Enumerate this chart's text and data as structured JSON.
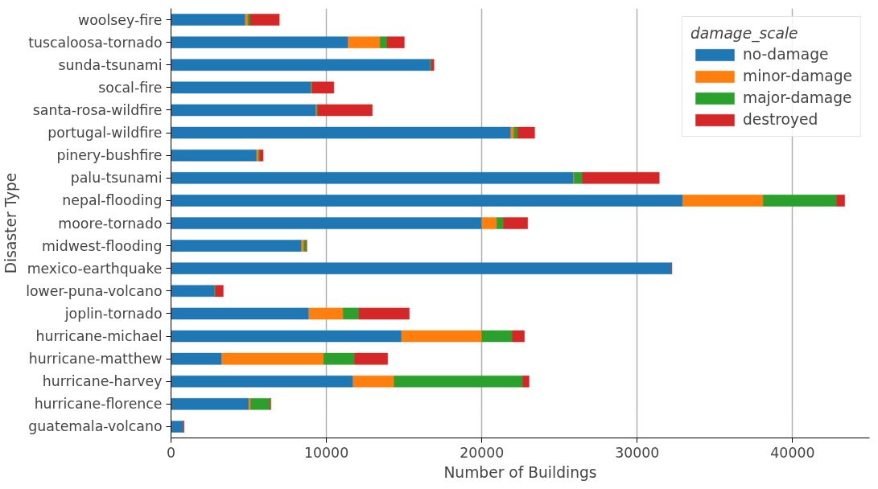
{
  "chart_data": {
    "type": "bar",
    "orientation": "horizontal",
    "stacked": true,
    "xlabel": "Number of Buildings",
    "ylabel": "Disaster Type",
    "legend_title": "damage_scale",
    "legend": "top right",
    "grid": "x",
    "categories": [
      "woolsey-fire",
      "tuscaloosa-tornado",
      "sunda-tsunami",
      "socal-fire",
      "santa-rosa-wildfire",
      "portugal-wildfire",
      "pinery-bushfire",
      "palu-tsunami",
      "nepal-flooding",
      "moore-tornado",
      "midwest-flooding",
      "mexico-earthquake",
      "lower-puna-volcano",
      "joplin-tornado",
      "hurricane-michael",
      "hurricane-matthew",
      "hurricane-harvey",
      "hurricane-florence",
      "guatemala-volcano"
    ],
    "xlim": [
      0,
      44950
    ],
    "xticks": [
      0,
      10000,
      20000,
      30000,
      40000
    ],
    "series": [
      {
        "name": "no-damage",
        "color": "#1f77b4",
        "values": [
          4780,
          11390,
          16680,
          9010,
          9330,
          21870,
          5510,
          25900,
          32930,
          20000,
          8400,
          32200,
          2790,
          8870,
          14830,
          3260,
          11710,
          5000,
          790
        ]
      },
      {
        "name": "minor-damage",
        "color": "#ff7f0e",
        "values": [
          170,
          2060,
          null,
          30,
          50,
          190,
          120,
          30,
          5170,
          960,
          150,
          null,
          null,
          2200,
          5170,
          6560,
          2640,
          120,
          0
        ]
      },
      {
        "name": "major-damage",
        "color": "#2ca02c",
        "values": [
          150,
          450,
          70,
          30,
          60,
          240,
          70,
          530,
          4720,
          420,
          150,
          null,
          60,
          1010,
          1950,
          1980,
          8270,
          1240,
          0
        ]
      },
      {
        "name": "destroyed",
        "color": "#d62728",
        "values": [
          1870,
          1110,
          170,
          1410,
          3510,
          1100,
          230,
          4960,
          530,
          1570,
          40,
          30,
          510,
          3250,
          790,
          2140,
          420,
          60,
          40
        ]
      }
    ]
  }
}
